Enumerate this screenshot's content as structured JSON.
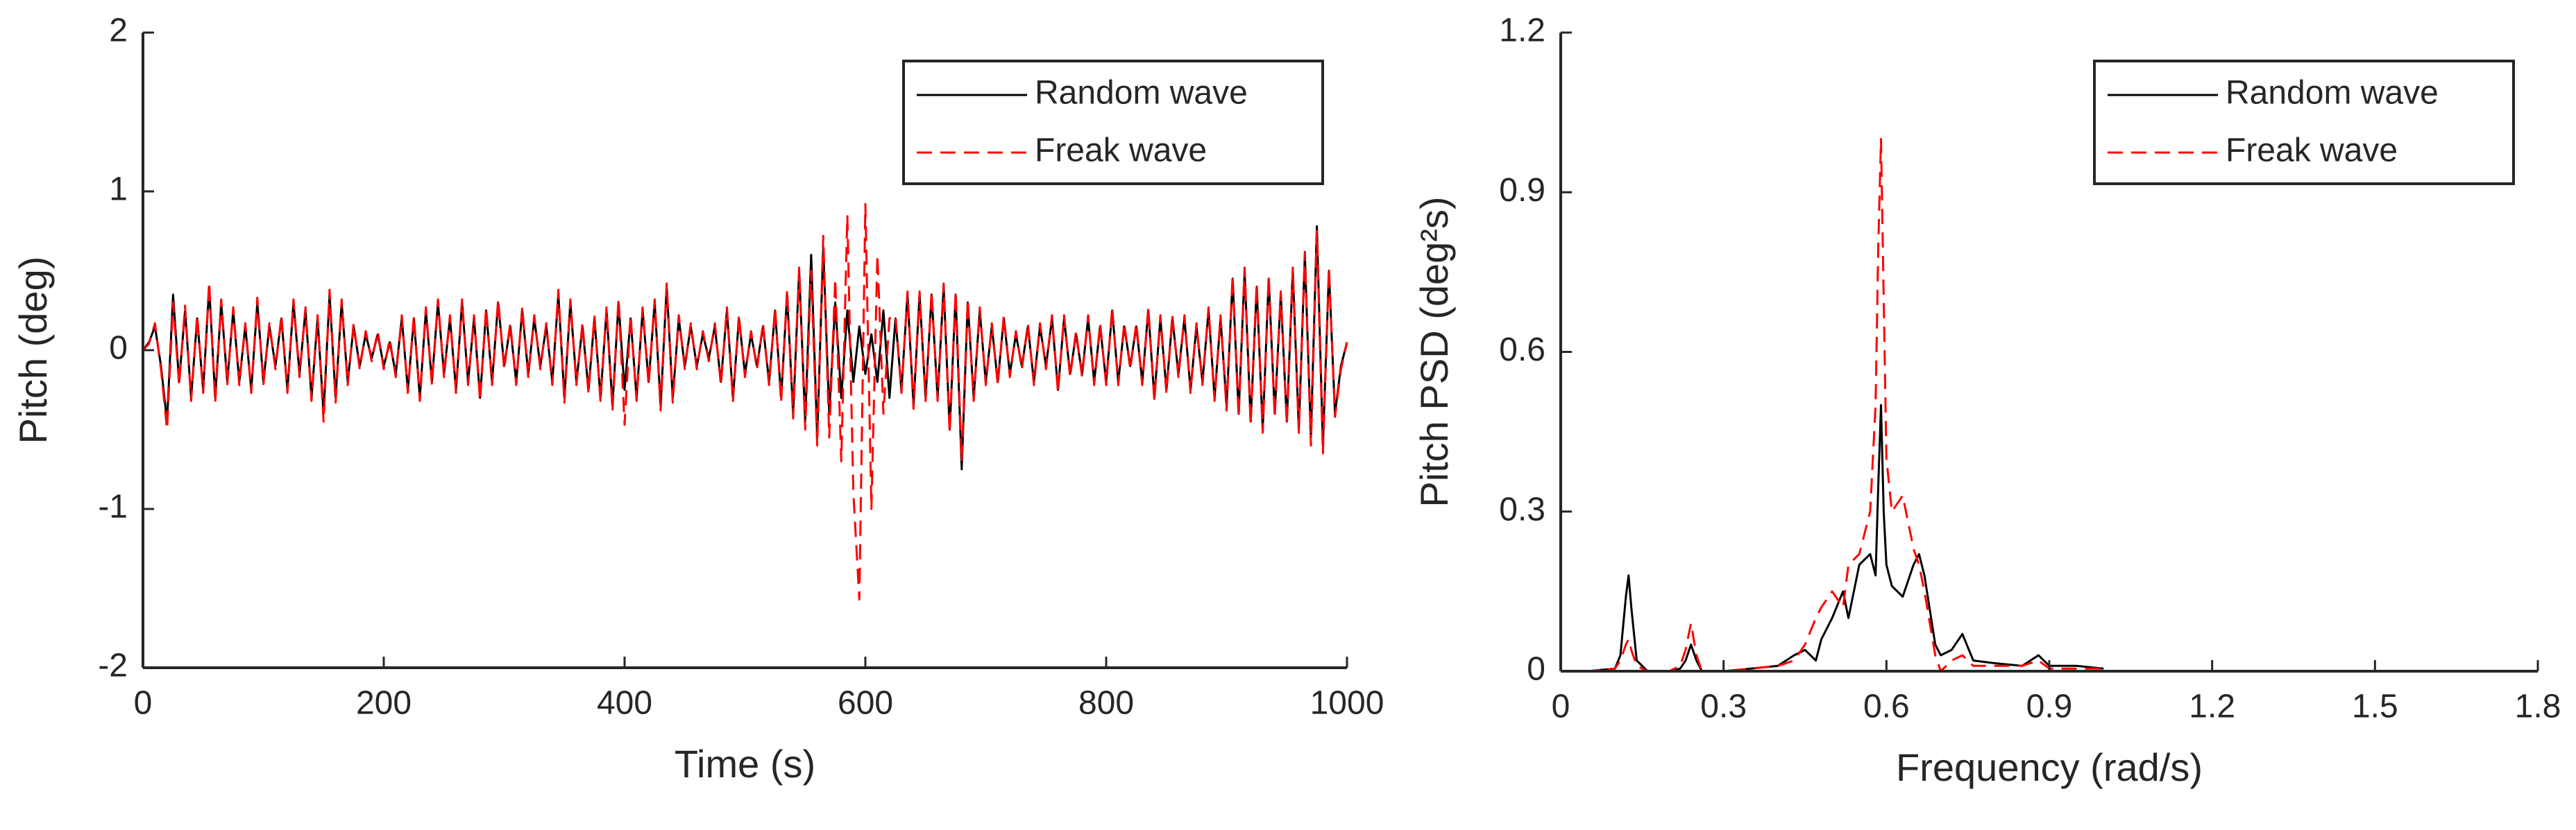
{
  "chart_data": [
    {
      "type": "line",
      "xlabel": "Time (s)",
      "ylabel": "Pitch (deg)",
      "legend": "upper right",
      "line_width": 3,
      "xlim": [
        0,
        1000
      ],
      "ylim": [
        -2,
        2
      ],
      "xticks": [
        0,
        200,
        400,
        600,
        800,
        1000
      ],
      "yticks": [
        -2,
        -1,
        0,
        1,
        2
      ],
      "x": [
        0,
        5,
        10,
        15,
        20,
        25,
        30,
        35,
        40,
        45,
        50,
        55,
        60,
        65,
        70,
        75,
        80,
        85,
        90,
        95,
        100,
        105,
        110,
        115,
        120,
        125,
        130,
        135,
        140,
        145,
        150,
        155,
        160,
        165,
        170,
        175,
        180,
        185,
        190,
        195,
        200,
        205,
        210,
        215,
        220,
        225,
        230,
        235,
        240,
        245,
        250,
        255,
        260,
        265,
        270,
        275,
        280,
        285,
        290,
        295,
        300,
        305,
        310,
        315,
        320,
        325,
        330,
        335,
        340,
        345,
        350,
        355,
        360,
        365,
        370,
        375,
        380,
        385,
        390,
        395,
        400,
        405,
        410,
        415,
        420,
        425,
        430,
        435,
        440,
        445,
        450,
        455,
        460,
        465,
        470,
        475,
        480,
        485,
        490,
        495,
        500,
        505,
        510,
        515,
        520,
        525,
        530,
        535,
        540,
        545,
        550,
        555,
        560,
        565,
        570,
        575,
        580,
        585,
        590,
        595,
        600,
        605,
        610,
        615,
        620,
        625,
        630,
        635,
        640,
        645,
        650,
        655,
        660,
        665,
        670,
        675,
        680,
        685,
        690,
        695,
        700,
        705,
        710,
        715,
        720,
        725,
        730,
        735,
        740,
        745,
        750,
        755,
        760,
        765,
        770,
        775,
        780,
        785,
        790,
        795,
        800,
        805,
        810,
        815,
        820,
        825,
        830,
        835,
        840,
        845,
        850,
        855,
        860,
        865,
        870,
        875,
        880,
        885,
        890,
        895,
        900,
        905,
        910,
        915,
        920,
        925,
        930,
        935,
        940,
        945,
        950,
        955,
        960,
        965,
        970,
        975,
        980,
        985,
        990,
        995,
        1000
      ],
      "series": [
        {
          "name": "Random wave",
          "color": "#000000",
          "style": "solid",
          "values": [
            0,
            0.05,
            0.15,
            -0.1,
            -0.45,
            0.35,
            -0.2,
            0.25,
            -0.3,
            0.2,
            -0.25,
            0.4,
            -0.3,
            0.3,
            -0.2,
            0.25,
            -0.2,
            0.15,
            -0.25,
            0.3,
            -0.2,
            0.15,
            -0.1,
            0.2,
            -0.25,
            0.3,
            -0.15,
            0.25,
            -0.3,
            0.2,
            -0.4,
            0.35,
            -0.3,
            0.3,
            -0.2,
            0.15,
            -0.1,
            0.1,
            -0.05,
            0.1,
            -0.1,
            0.05,
            -0.15,
            0.2,
            -0.25,
            0.2,
            -0.3,
            0.25,
            -0.2,
            0.3,
            -0.15,
            0.2,
            -0.25,
            0.3,
            -0.2,
            0.2,
            -0.3,
            0.25,
            -0.2,
            0.3,
            -0.1,
            0.15,
            -0.2,
            0.25,
            -0.15,
            0.2,
            -0.1,
            0.15,
            -0.2,
            0.35,
            -0.3,
            0.3,
            -0.2,
            0.15,
            -0.25,
            0.2,
            -0.3,
            0.25,
            -0.35,
            0.3,
            -0.25,
            0.2,
            -0.3,
            0.25,
            -0.2,
            0.3,
            -0.35,
            0.4,
            -0.3,
            0.2,
            -0.1,
            0.15,
            -0.1,
            0.1,
            -0.05,
            0.15,
            -0.2,
            0.25,
            -0.3,
            0.2,
            -0.15,
            0.1,
            -0.1,
            0.15,
            -0.2,
            0.25,
            -0.3,
            0.35,
            -0.4,
            0.5,
            -0.45,
            0.6,
            -0.55,
            0.65,
            -0.4,
            0.3,
            -0.3,
            0.25,
            -0.2,
            0.15,
            -0.15,
            0.1,
            -0.2,
            0.25,
            -0.3,
            0.2,
            -0.25,
            0.35,
            -0.35,
            0.35,
            -0.3,
            0.35,
            -0.3,
            0.4,
            -0.5,
            0.35,
            -0.75,
            0.3,
            -0.3,
            0.25,
            -0.2,
            0.15,
            -0.2,
            0.2,
            -0.15,
            0.1,
            -0.1,
            0.15,
            -0.2,
            0.15,
            -0.1,
            0.2,
            -0.25,
            0.2,
            -0.15,
            0.1,
            -0.15,
            0.2,
            -0.2,
            0.15,
            -0.2,
            0.25,
            -0.2,
            0.15,
            -0.1,
            0.15,
            -0.2,
            0.25,
            -0.3,
            0.2,
            -0.25,
            0.2,
            -0.15,
            0.2,
            -0.25,
            0.15,
            -0.2,
            0.25,
            -0.3,
            0.2,
            -0.35,
            0.45,
            -0.4,
            0.5,
            -0.45,
            0.4,
            -0.5,
            0.45,
            -0.4,
            0.35,
            -0.45,
            0.5,
            -0.5,
            0.6,
            -0.55,
            0.78,
            -0.6,
            0.5,
            -0.4,
            -0.1,
            0.05
          ]
        },
        {
          "name": "Freak wave",
          "color": "#ff0000",
          "style": "dashed",
          "values": [
            0,
            0.04,
            0.17,
            -0.12,
            -0.5,
            0.3,
            -0.22,
            0.28,
            -0.32,
            0.22,
            -0.27,
            0.43,
            -0.33,
            0.32,
            -0.22,
            0.27,
            -0.22,
            0.17,
            -0.27,
            0.33,
            -0.22,
            0.17,
            -0.12,
            0.22,
            -0.27,
            0.32,
            -0.17,
            0.27,
            -0.32,
            0.22,
            -0.45,
            0.38,
            -0.33,
            0.32,
            -0.22,
            0.17,
            -0.12,
            0.12,
            -0.07,
            0.12,
            -0.12,
            0.07,
            -0.17,
            0.22,
            -0.27,
            0.22,
            -0.32,
            0.27,
            -0.22,
            0.32,
            -0.17,
            0.22,
            -0.27,
            0.32,
            -0.22,
            0.22,
            -0.32,
            0.27,
            -0.22,
            0.32,
            -0.12,
            0.17,
            -0.22,
            0.27,
            -0.17,
            0.22,
            -0.12,
            0.17,
            -0.22,
            0.38,
            -0.33,
            0.32,
            -0.22,
            0.17,
            -0.27,
            0.22,
            -0.32,
            0.27,
            -0.38,
            0.33,
            -0.47,
            0.22,
            -0.32,
            0.27,
            -0.22,
            0.32,
            -0.38,
            0.42,
            -0.33,
            0.22,
            -0.12,
            0.17,
            -0.12,
            0.12,
            -0.07,
            0.17,
            -0.22,
            0.27,
            -0.32,
            0.22,
            -0.17,
            0.12,
            -0.12,
            0.17,
            -0.22,
            0.27,
            -0.33,
            0.38,
            -0.43,
            0.52,
            -0.5,
            0.5,
            -0.6,
            0.72,
            -0.55,
            0.45,
            -0.7,
            0.85,
            -0.9,
            -1.57,
            0.92,
            -1.0,
            0.6,
            -0.4,
            0.2,
            0.22,
            -0.27,
            0.37,
            -0.37,
            0.37,
            -0.32,
            0.37,
            -0.32,
            0.42,
            -0.52,
            0.37,
            -0.7,
            0.32,
            -0.32,
            0.27,
            -0.22,
            0.17,
            -0.22,
            0.22,
            -0.17,
            0.12,
            -0.12,
            0.17,
            -0.22,
            0.17,
            -0.12,
            0.22,
            -0.27,
            0.22,
            -0.17,
            0.12,
            -0.17,
            0.22,
            -0.22,
            0.17,
            -0.22,
            0.27,
            -0.22,
            0.17,
            -0.12,
            0.17,
            -0.22,
            0.27,
            -0.32,
            0.22,
            -0.27,
            0.22,
            -0.17,
            0.22,
            -0.27,
            0.17,
            -0.22,
            0.27,
            -0.32,
            0.22,
            -0.38,
            0.47,
            -0.42,
            0.52,
            -0.47,
            0.42,
            -0.52,
            0.47,
            -0.42,
            0.37,
            -0.47,
            0.52,
            -0.52,
            0.62,
            -0.6,
            0.75,
            -0.65,
            0.52,
            -0.42,
            -0.12,
            0.05
          ]
        }
      ]
    },
    {
      "type": "line",
      "xlabel": "Frequency (rad/s)",
      "ylabel": "Pitch PSD (deg²s)",
      "legend": "upper right",
      "line_width": 3,
      "xlim": [
        0,
        1.8
      ],
      "ylim": [
        0,
        1.2
      ],
      "xticks": [
        0,
        0.3,
        0.6,
        0.9,
        1.2,
        1.5,
        1.8
      ],
      "yticks": [
        0,
        0.3,
        0.6,
        0.9,
        1.2
      ],
      "x": [
        0,
        0.05,
        0.1,
        0.11,
        0.12,
        0.125,
        0.13,
        0.14,
        0.16,
        0.2,
        0.22,
        0.23,
        0.24,
        0.25,
        0.26,
        0.3,
        0.35,
        0.4,
        0.43,
        0.45,
        0.47,
        0.48,
        0.5,
        0.52,
        0.53,
        0.55,
        0.57,
        0.58,
        0.585,
        0.59,
        0.595,
        0.6,
        0.61,
        0.63,
        0.65,
        0.66,
        0.67,
        0.69,
        0.7,
        0.72,
        0.74,
        0.76,
        0.8,
        0.85,
        0.88,
        0.9,
        0.95,
        1.0
      ],
      "series": [
        {
          "name": "Random wave",
          "color": "#000000",
          "style": "solid",
          "values": [
            0,
            0,
            0.005,
            0.03,
            0.14,
            0.18,
            0.12,
            0.02,
            0,
            0,
            0.005,
            0.02,
            0.05,
            0.02,
            0,
            0,
            0.005,
            0.01,
            0.03,
            0.04,
            0.02,
            0.06,
            0.1,
            0.15,
            0.1,
            0.2,
            0.22,
            0.18,
            0.35,
            0.5,
            0.3,
            0.2,
            0.16,
            0.14,
            0.2,
            0.22,
            0.18,
            0.05,
            0.03,
            0.04,
            0.07,
            0.02,
            0.015,
            0.01,
            0.03,
            0.01,
            0.01,
            0.005
          ]
        },
        {
          "name": "Freak wave",
          "color": "#ff0000",
          "style": "dashed",
          "values": [
            0,
            0,
            0.005,
            0.02,
            0.05,
            0.06,
            0.04,
            0.01,
            0,
            0,
            0.01,
            0.04,
            0.09,
            0.03,
            0,
            0,
            0.005,
            0.01,
            0.02,
            0.05,
            0.1,
            0.12,
            0.15,
            0.12,
            0.2,
            0.22,
            0.3,
            0.5,
            0.8,
            1.0,
            0.7,
            0.4,
            0.3,
            0.33,
            0.23,
            0.2,
            0.15,
            0.03,
            0,
            0.02,
            0.03,
            0.01,
            0.01,
            0.01,
            0.02,
            0.005,
            0.005,
            0.005
          ]
        }
      ]
    }
  ]
}
